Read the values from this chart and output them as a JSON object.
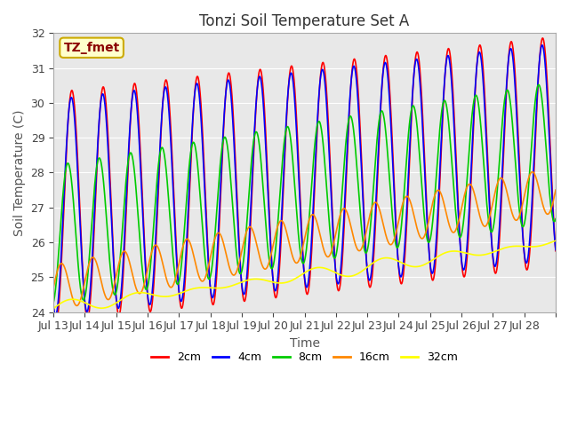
{
  "title": "Tonzi Soil Temperature Set A",
  "xlabel": "Time",
  "ylabel": "Soil Temperature (C)",
  "annotation": "TZ_fmet",
  "ylim": [
    24.0,
    32.0
  ],
  "yticks": [
    24.0,
    25.0,
    26.0,
    27.0,
    28.0,
    29.0,
    30.0,
    31.0,
    32.0
  ],
  "xtick_labels": [
    "Jul 13",
    "Jul 14",
    "Jul 15",
    "Jul 16",
    "Jul 17",
    "Jul 18",
    "Jul 19",
    "Jul 20",
    "Jul 21",
    "Jul 22",
    "Jul 23",
    "Jul 24",
    "Jul 25",
    "Jul 26",
    "Jul 27",
    "Jul 28"
  ],
  "series": [
    {
      "label": "2cm",
      "color": "#ff0000"
    },
    {
      "label": "4cm",
      "color": "#0000ff"
    },
    {
      "label": "8cm",
      "color": "#00cc00"
    },
    {
      "label": "16cm",
      "color": "#ff8800"
    },
    {
      "label": "32cm",
      "color": "#ffff00"
    }
  ],
  "bg_color": "#e8e8e8",
  "fig_bg": "#ffffff",
  "title_fontsize": 12,
  "label_fontsize": 10,
  "tick_fontsize": 9,
  "legend_fontsize": 9
}
